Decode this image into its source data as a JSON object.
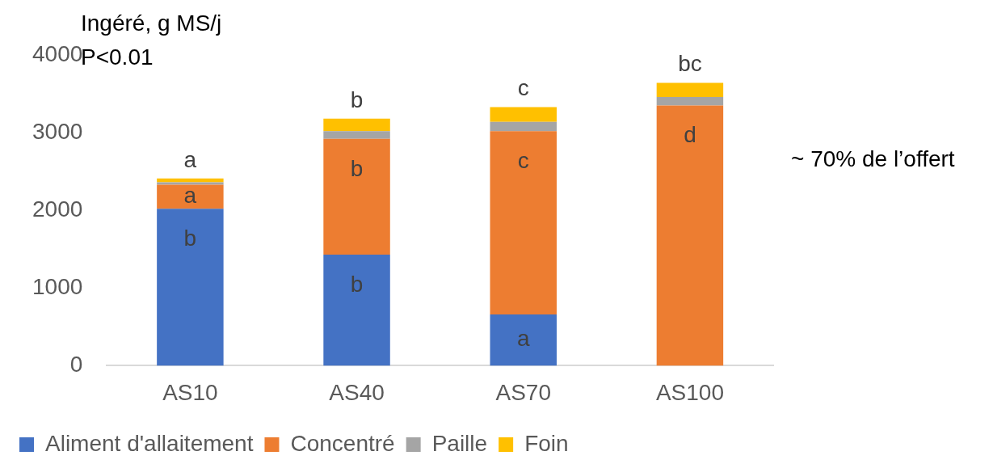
{
  "chart_data": {
    "type": "bar",
    "stacked": true,
    "ylabel": "Ingéré, g MS/j",
    "subtitle": "P<0.01",
    "categories": [
      "AS10",
      "AS40",
      "AS70",
      "AS100"
    ],
    "series": [
      {
        "name": "Aliment d'allaitement",
        "color": "#4472c4",
        "values": [
          2020,
          1430,
          660,
          0
        ],
        "value_labels": [
          "b",
          "b",
          "a",
          null
        ]
      },
      {
        "name": "Concentré",
        "color": "#ed7d31",
        "values": [
          310,
          1490,
          2360,
          3350
        ],
        "value_labels": [
          "a",
          "b",
          "c",
          "d"
        ]
      },
      {
        "name": "Paille",
        "color": "#a5a5a5",
        "values": [
          30,
          100,
          120,
          110
        ]
      },
      {
        "name": "Foin",
        "color": "#ffc000",
        "values": [
          50,
          160,
          190,
          180
        ]
      }
    ],
    "ylim": [
      0,
      4000
    ],
    "yticks": [
      0,
      1000,
      2000,
      3000,
      4000
    ],
    "grid": false,
    "legend": "bottom",
    "totals": [
      "a",
      "b",
      "c",
      "bc"
    ],
    "annotations": [
      "~ 70% de l’offert"
    ]
  }
}
